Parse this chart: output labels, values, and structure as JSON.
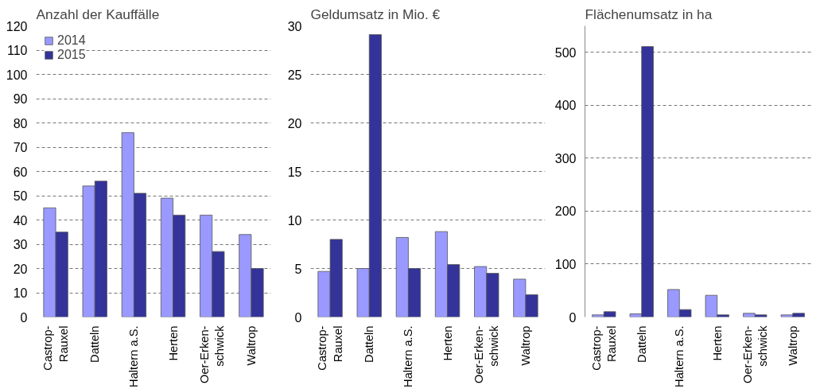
{
  "chart_data": [
    {
      "type": "bar",
      "title": "Anzahl der Kauffälle",
      "categories": [
        "Castrop-\nRauxel",
        "Datteln",
        "Haltern a.S.",
        "Herten",
        "Oer-Erken-\nschwick",
        "Waltrop"
      ],
      "series": [
        {
          "name": "2014",
          "color": "#9999ff",
          "values": [
            45,
            54,
            76,
            49,
            42,
            34
          ]
        },
        {
          "name": "2015",
          "color": "#333399",
          "values": [
            35,
            56,
            51,
            42,
            27,
            20
          ]
        }
      ],
      "ylim": [
        0,
        120
      ],
      "yticks": [
        0,
        10,
        20,
        30,
        40,
        50,
        60,
        70,
        80,
        90,
        100,
        110,
        120
      ],
      "grid": "y",
      "legend": "top left"
    },
    {
      "type": "bar",
      "title": "Geldumsatz in Mio. €",
      "categories": [
        "Castrop-\nRauxel",
        "Datteln",
        "Haltern a.S.",
        "Herten",
        "Oer-Erken-\nschwick",
        "Waltrop"
      ],
      "series": [
        {
          "color": "#9999ff",
          "values": [
            4.7,
            5.0,
            8.2,
            8.8,
            5.2,
            3.9
          ]
        },
        {
          "color": "#333399",
          "values": [
            8.0,
            29.1,
            5.0,
            5.4,
            4.5,
            2.3
          ]
        }
      ],
      "ylim": [
        0,
        30
      ],
      "yticks": [
        0,
        5,
        10,
        15,
        20,
        25,
        30
      ],
      "grid": "y"
    },
    {
      "type": "bar",
      "title": "Flächenumsatz in ha",
      "categories": [
        "Castrop-\nRauxel",
        "Datteln",
        "Haltern a.S.",
        "Herten",
        "Oer-Erken-\nschwick",
        "Waltrop"
      ],
      "series": [
        {
          "color": "#9999ff",
          "values": [
            4,
            6,
            52,
            41,
            7,
            4
          ]
        },
        {
          "color": "#333399",
          "values": [
            10,
            511,
            14,
            4,
            4,
            7
          ]
        }
      ],
      "ylim": [
        0,
        550
      ],
      "yticks": [
        0,
        100,
        200,
        300,
        400,
        500
      ],
      "grid": "y"
    }
  ]
}
